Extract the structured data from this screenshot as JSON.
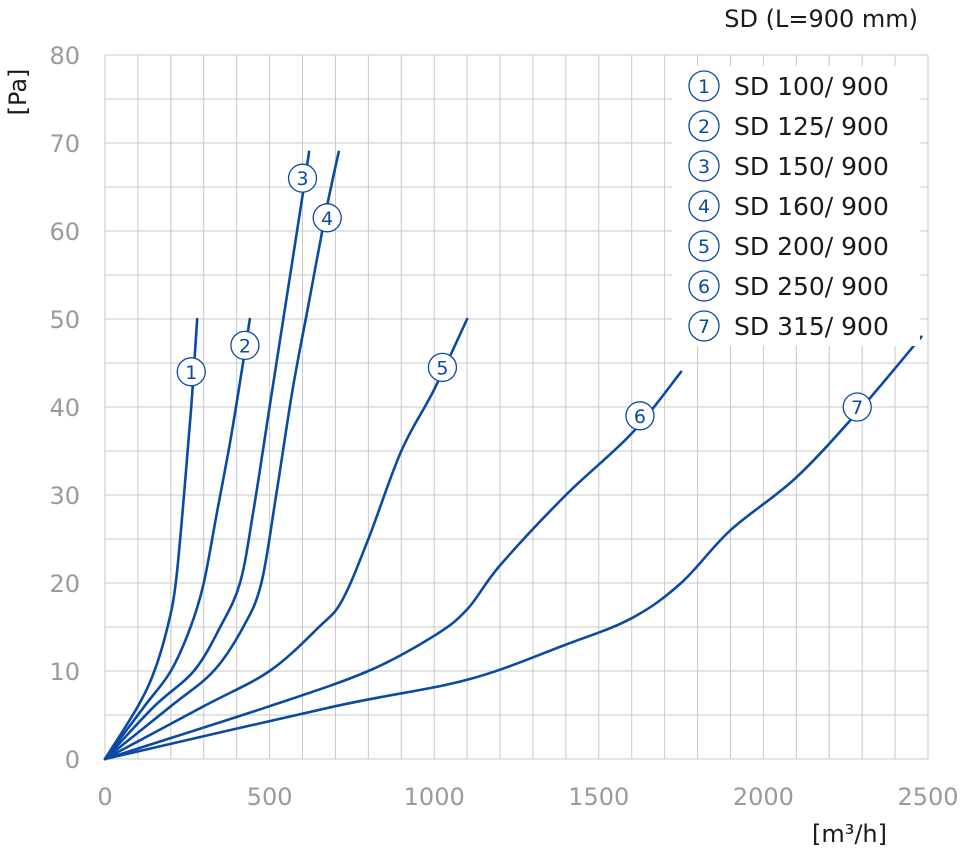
{
  "chart_data": {
    "type": "line",
    "title": "SD (L=900 mm)",
    "xlabel": "[m³/h]",
    "ylabel": "[Pa]",
    "xlim": [
      0,
      2500
    ],
    "ylim": [
      0,
      80
    ],
    "x_ticks": [
      0,
      500,
      1000,
      1500,
      2000,
      2500
    ],
    "y_ticks": [
      0,
      10,
      20,
      30,
      40,
      50,
      60,
      70,
      80
    ],
    "grid": true,
    "legend_position": "top-right",
    "series": [
      {
        "marker": "1",
        "name": "SD 100/ 900",
        "label_at": [
          262,
          44
        ],
        "points": [
          [
            0,
            0
          ],
          [
            100,
            6
          ],
          [
            150,
            10
          ],
          [
            190,
            15
          ],
          [
            215,
            20
          ],
          [
            240,
            30
          ],
          [
            262,
            40
          ],
          [
            280,
            50
          ]
        ]
      },
      {
        "marker": "2",
        "name": "SD 125/ 900",
        "label_at": [
          425,
          47
        ],
        "points": [
          [
            0,
            0
          ],
          [
            120,
            6
          ],
          [
            200,
            10
          ],
          [
            260,
            15
          ],
          [
            300,
            20
          ],
          [
            340,
            28
          ],
          [
            380,
            36
          ],
          [
            415,
            44
          ],
          [
            440,
            50
          ]
        ]
      },
      {
        "marker": "3",
        "name": "SD 150/ 900",
        "label_at": [
          600,
          66
        ],
        "points": [
          [
            0,
            0
          ],
          [
            150,
            6
          ],
          [
            270,
            10
          ],
          [
            350,
            15
          ],
          [
            410,
            20
          ],
          [
            450,
            28
          ],
          [
            500,
            40
          ],
          [
            550,
            52
          ],
          [
            600,
            64
          ],
          [
            620,
            69
          ]
        ]
      },
      {
        "marker": "4",
        "name": "SD 160/ 900",
        "label_at": [
          675,
          61.5
        ],
        "points": [
          [
            0,
            0
          ],
          [
            200,
            6
          ],
          [
            330,
            10
          ],
          [
            420,
            15
          ],
          [
            475,
            20
          ],
          [
            520,
            30
          ],
          [
            570,
            42
          ],
          [
            620,
            52
          ],
          [
            670,
            62
          ],
          [
            710,
            69
          ]
        ]
      },
      {
        "marker": "5",
        "name": "SD 200/ 900",
        "label_at": [
          1025,
          44.5
        ],
        "points": [
          [
            0,
            0
          ],
          [
            300,
            6
          ],
          [
            500,
            10
          ],
          [
            650,
            15
          ],
          [
            720,
            18
          ],
          [
            800,
            25
          ],
          [
            900,
            35
          ],
          [
            1000,
            42
          ],
          [
            1100,
            50
          ]
        ]
      },
      {
        "marker": "6",
        "name": "SD 250/ 900",
        "label_at": [
          1625,
          39
        ],
        "points": [
          [
            0,
            0
          ],
          [
            500,
            6
          ],
          [
            800,
            10
          ],
          [
            1000,
            14
          ],
          [
            1100,
            17
          ],
          [
            1200,
            22
          ],
          [
            1400,
            30
          ],
          [
            1600,
            37
          ],
          [
            1750,
            44
          ]
        ]
      },
      {
        "marker": "7",
        "name": "SD 315/ 900",
        "label_at": [
          2285,
          40
        ],
        "points": [
          [
            0,
            0
          ],
          [
            700,
            6
          ],
          [
            1100,
            9
          ],
          [
            1400,
            13
          ],
          [
            1600,
            16
          ],
          [
            1750,
            20
          ],
          [
            1900,
            26
          ],
          [
            2100,
            32
          ],
          [
            2300,
            40
          ],
          [
            2480,
            48
          ]
        ]
      }
    ]
  }
}
